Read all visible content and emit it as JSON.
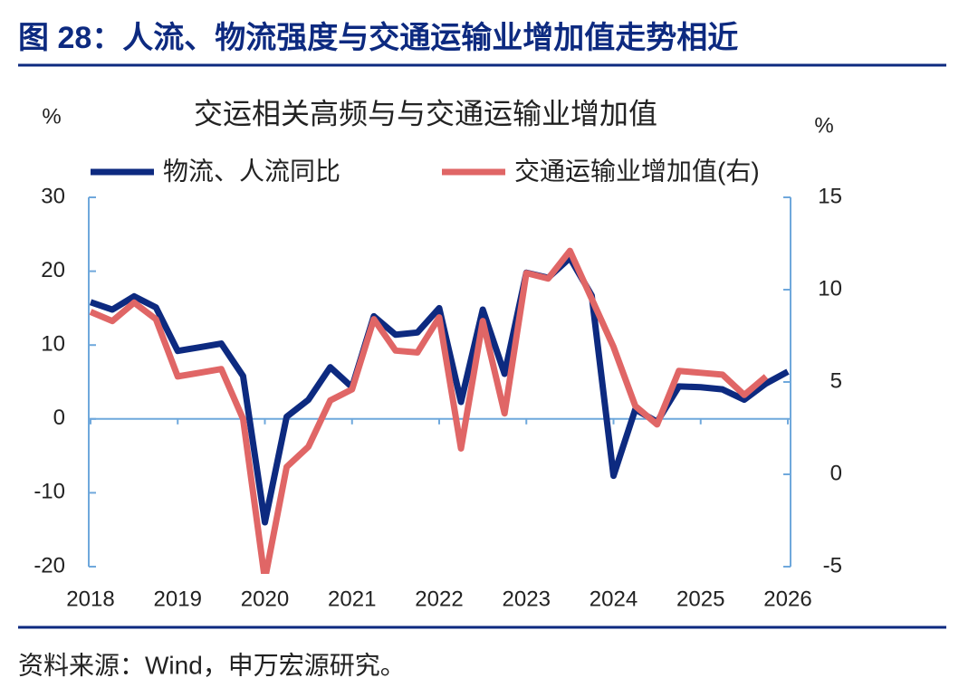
{
  "header": {
    "title": "图 28：人流、物流强度与交通运输业增加值走势相近"
  },
  "chart_data": {
    "type": "line",
    "title": "交运相关高频与与交通运输业增加值",
    "y_label": "%",
    "y2_label": "%",
    "x": [
      2018,
      2018.25,
      2018.5,
      2018.75,
      2019,
      2019.25,
      2019.5,
      2019.75,
      2020,
      2020.25,
      2020.5,
      2020.75,
      2021,
      2021.25,
      2021.5,
      2021.75,
      2022,
      2022.25,
      2022.5,
      2022.75,
      2023,
      2023.25,
      2023.5,
      2023.75,
      2024,
      2024.25,
      2024.5,
      2024.75,
      2025,
      2025.25,
      2025.5,
      2025.75,
      2026
    ],
    "series": [
      {
        "name": "物流、人流同比",
        "color": "#0d2a80",
        "values": [
          15.8,
          14.8,
          16.6,
          15.1,
          9.2,
          9.7,
          10.2,
          5.8,
          -14,
          0.3,
          2.6,
          7.0,
          4.3,
          13.9,
          11.4,
          11.7,
          15.0,
          2.3,
          14.8,
          6.1,
          19.8,
          19.1,
          21.8,
          16.7,
          -7.7,
          1.3,
          -0.4,
          4.4,
          4.3,
          4.0,
          2.6,
          4.8,
          6.4
        ]
      },
      {
        "name": "交通运输业增加值(右)",
        "color": "#e06666",
        "axis": "y2",
        "values": [
          8.8,
          8.3,
          9.3,
          8.4,
          5.3,
          5.5,
          5.7,
          3.0,
          -5.7,
          0.4,
          1.5,
          4.0,
          4.6,
          8.4,
          6.7,
          6.6,
          8.5,
          1.4,
          8.3,
          3.3,
          10.9,
          10.6,
          12.1,
          9.5,
          6.9,
          3.7,
          2.7,
          5.6,
          5.5,
          5.4,
          4.3,
          5.3,
          null
        ]
      }
    ],
    "xlim": [
      2018,
      2026
    ],
    "xticks": [
      2018,
      2019,
      2020,
      2021,
      2022,
      2023,
      2024,
      2025,
      2026
    ],
    "ylim": [
      -20,
      30
    ],
    "yticks": [
      -20,
      -10,
      0,
      10,
      20,
      30
    ],
    "y2lim": [
      -5,
      15
    ],
    "y2ticks": [
      -5,
      0,
      5,
      10,
      15
    ]
  },
  "footer": {
    "source": "资料来源：Wind，申万宏源研究。"
  }
}
